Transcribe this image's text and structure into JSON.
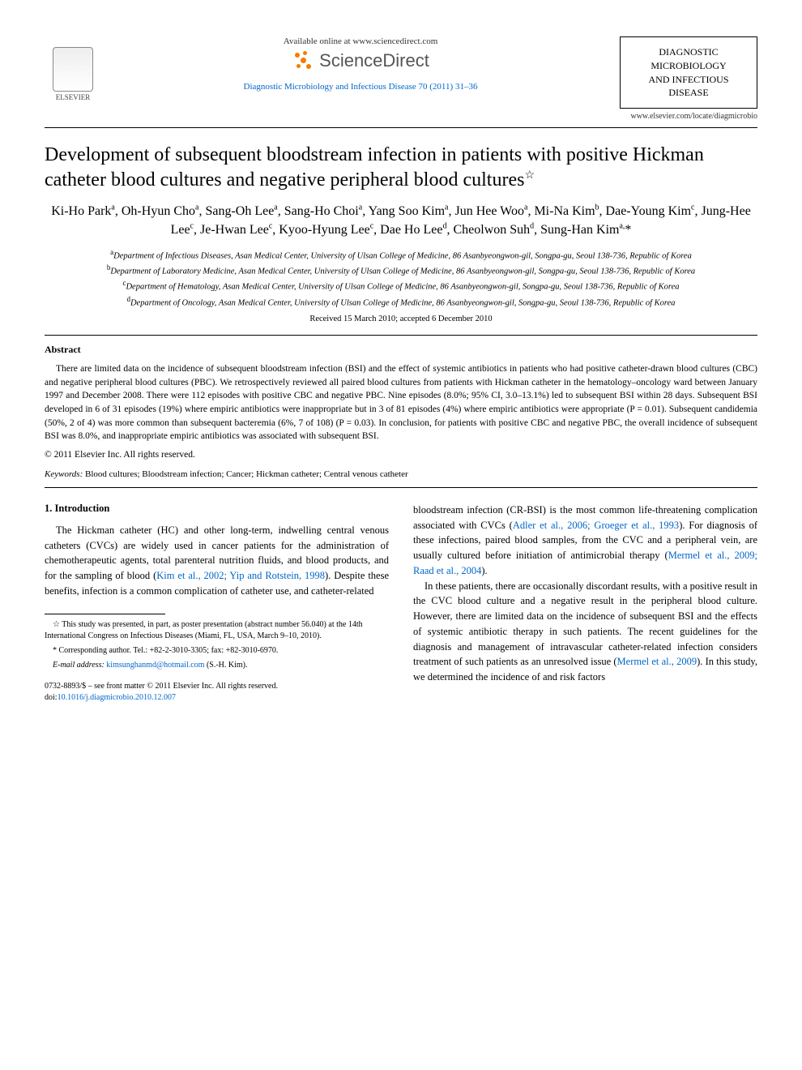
{
  "header": {
    "elsevier_label": "ELSEVIER",
    "available_online": "Available online at www.sciencedirect.com",
    "sciencedirect_name": "ScienceDirect",
    "citation": "Diagnostic Microbiology and Infectious Disease 70 (2011) 31–36",
    "journal_box_lines": [
      "DIAGNOSTIC",
      "MICROBIOLOGY",
      "AND INFECTIOUS",
      "DISEASE"
    ],
    "journal_url": "www.elsevier.com/locate/diagmicrobio"
  },
  "article": {
    "title": "Development of subsequent bloodstream infection in patients with positive Hickman catheter blood cultures and negative peripheral blood cultures",
    "star": "☆",
    "authors_html": "Ki-Ho Park<sup>a</sup>, Oh-Hyun Cho<sup>a</sup>, Sang-Oh Lee<sup>a</sup>, Sang-Ho Choi<sup>a</sup>, Yang Soo Kim<sup>a</sup>, Jun Hee Woo<sup>a</sup>, Mi-Na Kim<sup>b</sup>, Dae-Young Kim<sup>c</sup>, Jung-Hee Lee<sup>c</sup>, Je-Hwan Lee<sup>c</sup>, Kyoo-Hyung Lee<sup>c</sup>, Dae Ho Lee<sup>d</sup>, Cheolwon Suh<sup>d</sup>, Sung-Han Kim<sup>a,</sup>*",
    "affiliations": [
      {
        "sup": "a",
        "text": "Department of Infectious Diseases, Asan Medical Center, University of Ulsan College of Medicine, 86 Asanbyeongwon-gil, Songpa-gu, Seoul 138-736, Republic of Korea"
      },
      {
        "sup": "b",
        "text": "Department of Laboratory Medicine, Asan Medical Center, University of Ulsan College of Medicine, 86 Asanbyeongwon-gil, Songpa-gu, Seoul 138-736, Republic of Korea"
      },
      {
        "sup": "c",
        "text": "Department of Hematology, Asan Medical Center, University of Ulsan College of Medicine, 86 Asanbyeongwon-gil, Songpa-gu, Seoul 138-736, Republic of Korea"
      },
      {
        "sup": "d",
        "text": "Department of Oncology, Asan Medical Center, University of Ulsan College of Medicine, 86 Asanbyeongwon-gil, Songpa-gu, Seoul 138-736, Republic of Korea"
      }
    ],
    "received": "Received 15 March 2010; accepted 6 December 2010"
  },
  "abstract": {
    "label": "Abstract",
    "text": "There are limited data on the incidence of subsequent bloodstream infection (BSI) and the effect of systemic antibiotics in patients who had positive catheter-drawn blood cultures (CBC) and negative peripheral blood cultures (PBC). We retrospectively reviewed all paired blood cultures from patients with Hickman catheter in the hematology–oncology ward between January 1997 and December 2008. There were 112 episodes with positive CBC and negative PBC. Nine episodes (8.0%; 95% CI, 3.0–13.1%) led to subsequent BSI within 28 days. Subsequent BSI developed in 6 of 31 episodes (19%) where empiric antibiotics were inappropriate but in 3 of 81 episodes (4%) where empiric antibiotics were appropriate (P = 0.01). Subsequent candidemia (50%, 2 of 4) was more common than subsequent bacteremia (6%, 7 of 108) (P = 0.03). In conclusion, for patients with positive CBC and negative PBC, the overall incidence of subsequent BSI was 8.0%, and inappropriate empiric antibiotics was associated with subsequent BSI.",
    "copyright": "© 2011 Elsevier Inc. All rights reserved."
  },
  "keywords": {
    "label": "Keywords:",
    "text": "Blood cultures; Bloodstream infection; Cancer; Hickman catheter; Central venous catheter"
  },
  "intro": {
    "heading": "1. Introduction",
    "col1_para1_pre": "The Hickman catheter (HC) and other long-term, indwelling central venous catheters (CVCs) are widely used in cancer patients for the administration of chemotherapeutic agents, total parenteral nutrition fluids, and blood products, and for the sampling of blood (",
    "col1_para1_link": "Kim et al., 2002; Yip and Rotstein, 1998",
    "col1_para1_post": "). Despite these benefits, infection is a common complication of catheter use, and catheter-related",
    "col2_para1_pre": "bloodstream infection (CR-BSI) is the most common life-threatening complication associated with CVCs (",
    "col2_para1_link": "Adler et al., 2006; Groeger et al., 1993",
    "col2_para1_mid": "). For diagnosis of these infections, paired blood samples, from the CVC and a peripheral vein, are usually cultured before initiation of antimicrobial therapy (",
    "col2_para1_link2": "Mermel et al., 2009; Raad et al., 2004",
    "col2_para1_post": ").",
    "col2_para2_pre": "In these patients, there are occasionally discordant results, with a positive result in the CVC blood culture and a negative result in the peripheral blood culture. However, there are limited data on the incidence of subsequent BSI and the effects of systemic antibiotic therapy in such patients. The recent guidelines for the diagnosis and management of intravascular catheter-related infection considers treatment of such patients as an unresolved issue (",
    "col2_para2_link": "Mermel et al., 2009",
    "col2_para2_post": "). In this study, we determined the incidence of and risk factors"
  },
  "footnotes": {
    "presentation": "This study was presented, in part, as poster presentation (abstract number 56.040) at the 14th International Congress on Infectious Diseases (Miami, FL, USA, March 9–10, 2010).",
    "corresponding": "Corresponding author. Tel.: +82-2-3010-3305; fax: +82-3010-6970.",
    "email_label": "E-mail address:",
    "email": "kimsunghanmd@hotmail.com",
    "email_suffix": "(S.-H. Kim).",
    "issn_line1": "0732-8893/$ – see front matter © 2011 Elsevier Inc. All rights reserved.",
    "doi_prefix": "doi:",
    "doi": "10.1016/j.diagmicrobio.2010.12.007"
  },
  "colors": {
    "link": "#0066cc",
    "text": "#000000",
    "sd_orange": "#f57c00"
  }
}
